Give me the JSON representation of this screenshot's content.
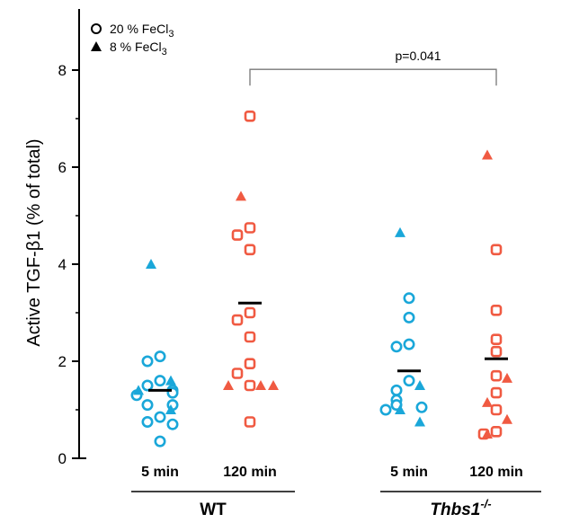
{
  "chart_data": {
    "type": "scatter",
    "ylabel": "Active TGF-β1 (% of total)",
    "ylim": [
      0,
      9
    ],
    "yticks": [
      0,
      2,
      4,
      6,
      8
    ],
    "categories": [
      "5 min",
      "120 min",
      "5 min",
      "120 min"
    ],
    "groups": [
      {
        "label_main": "WT",
        "label_sup": "",
        "categories": [
          0,
          1
        ]
      },
      {
        "label_main": "Thbs1",
        "label_sup": "-/-",
        "categories": [
          2,
          3
        ]
      }
    ],
    "legend": [
      {
        "marker": "open-circle",
        "text_main": "20 % FeCl",
        "text_sub": "3"
      },
      {
        "marker": "filled-triangle",
        "text_main": "8 % FeCl",
        "text_sub": "3"
      }
    ],
    "colors": {
      "5 min": "#1aa7d9",
      "120 min": "#f05a42",
      "mean": "#000000"
    },
    "series": [
      {
        "category": "WT 5 min",
        "circles": [
          2.1,
          2.0,
          1.6,
          1.5,
          1.4,
          1.35,
          1.3,
          1.1,
          1.1,
          0.85,
          0.75,
          0.7,
          0.35
        ],
        "triangles": [
          4.0,
          1.6,
          1.4,
          1.0
        ],
        "mean": 1.4
      },
      {
        "category": "WT 120 min",
        "circles": [
          7.05,
          4.75,
          4.6,
          4.3,
          3.0,
          2.85,
          2.5,
          1.95,
          1.75,
          1.5,
          0.75
        ],
        "triangles": [
          5.4,
          1.5,
          1.5,
          1.5
        ],
        "mean": 3.2
      },
      {
        "category": "Thbs1 5 min",
        "circles": [
          3.3,
          2.9,
          2.35,
          2.3,
          1.6,
          1.4,
          1.2,
          1.1,
          1.05,
          1.0
        ],
        "triangles": [
          4.65,
          1.5,
          1.0,
          0.75
        ],
        "mean": 1.8
      },
      {
        "category": "Thbs1 120 min",
        "circles": [
          4.3,
          3.05,
          2.45,
          2.2,
          1.7,
          1.35,
          1.0,
          0.55,
          0.5
        ],
        "triangles": [
          6.25,
          1.65,
          1.15,
          0.8,
          0.5
        ],
        "mean": 2.05
      }
    ],
    "annotations": [
      {
        "text": "p=0.041",
        "from_category": 1,
        "to_category": 3,
        "y": 8.2
      }
    ]
  }
}
